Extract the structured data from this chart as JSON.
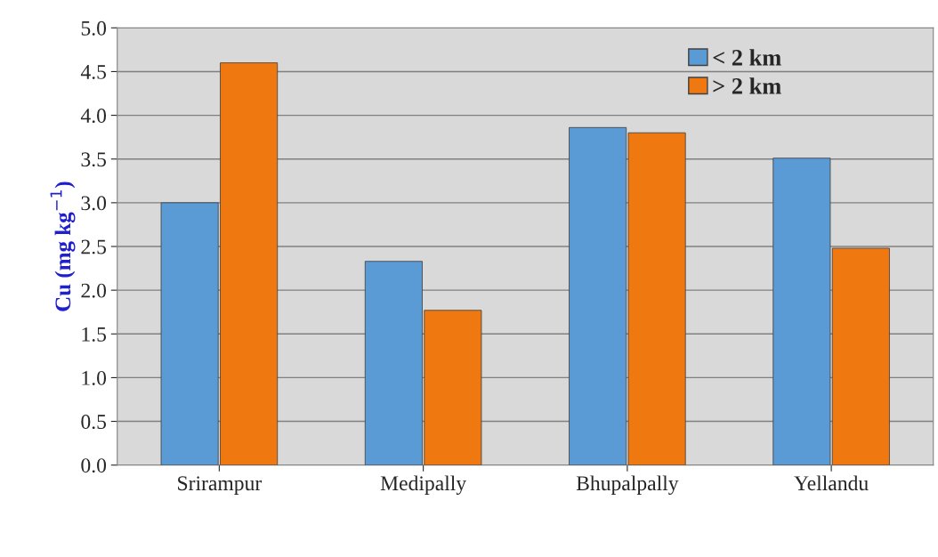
{
  "chart_data": {
    "type": "bar",
    "ylabel": "Cu (mg kg$^{−1}$)",
    "categories": [
      "Srirampur",
      "Medipally",
      "Bhupalpally",
      "Yellandu"
    ],
    "series": [
      {
        "name": "< 2 km",
        "color": "#5b9bd5",
        "values": [
          3.0,
          2.33,
          3.86,
          3.51
        ]
      },
      {
        "name": "> 2 km",
        "color": "#f07810",
        "values": [
          4.6,
          1.77,
          3.8,
          2.48
        ]
      }
    ],
    "ylim": [
      0,
      5
    ],
    "yticks": [
      {
        "value": 0,
        "label": "0.0"
      },
      0.5,
      {
        "value": 1,
        "label": "1.0"
      },
      1.5,
      {
        "value": 2,
        "label": "2.0"
      },
      2.5,
      {
        "value": 3,
        "label": "3.0"
      },
      3.5,
      {
        "value": 4,
        "label": "4.0"
      },
      4.5,
      {
        "value": 5,
        "label": "5.0"
      }
    ],
    "grid": "y",
    "legend": "top right"
  }
}
